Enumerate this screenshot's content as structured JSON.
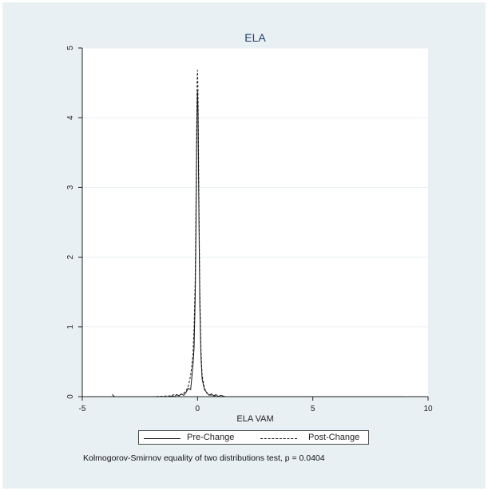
{
  "chart_data": {
    "type": "line",
    "title": "ELA",
    "xlabel": "ELA VAM",
    "ylabel": "",
    "xlim": [
      -5,
      10
    ],
    "ylim": [
      0,
      5
    ],
    "xticks": [
      -5,
      0,
      5,
      10
    ],
    "yticks": [
      0,
      1,
      2,
      3,
      4,
      5
    ],
    "grid": "horizontal",
    "legend_position": "bottom",
    "series": [
      {
        "name": "Pre-Change",
        "style": "solid",
        "x": [
          -3.7,
          -3.6,
          -3.4,
          -2.0,
          -1.2,
          -1.1,
          -1.0,
          -0.9,
          -0.8,
          -0.7,
          -0.6,
          -0.5,
          -0.4,
          -0.3,
          -0.2,
          -0.15,
          -0.1,
          -0.07,
          -0.04,
          -0.02,
          0.0,
          0.02,
          0.04,
          0.07,
          0.1,
          0.15,
          0.2,
          0.3,
          0.4,
          0.5,
          0.6,
          0.7,
          0.8,
          0.9,
          1.0,
          1.2,
          2.0,
          5.0,
          9.0
        ],
        "y": [
          0.03,
          0.0,
          0.0,
          0.0,
          0.0,
          0.01,
          0.0,
          0.03,
          0.01,
          0.04,
          0.02,
          0.06,
          0.12,
          0.1,
          0.45,
          0.7,
          1.4,
          2.3,
          3.5,
          4.1,
          4.38,
          4.1,
          3.3,
          2.2,
          1.3,
          0.55,
          0.25,
          0.1,
          0.06,
          0.02,
          0.04,
          0.01,
          0.03,
          0.0,
          0.02,
          0.0,
          0.0,
          0.0,
          0.0
        ]
      },
      {
        "name": "Post-Change",
        "style": "dashed",
        "x": [
          -3.7,
          -3.0,
          -2.0,
          -1.2,
          -1.0,
          -0.8,
          -0.6,
          -0.5,
          -0.4,
          -0.3,
          -0.2,
          -0.15,
          -0.1,
          -0.07,
          -0.04,
          -0.02,
          0.0,
          0.02,
          0.04,
          0.07,
          0.1,
          0.15,
          0.2,
          0.3,
          0.4,
          0.5,
          0.6,
          0.8,
          1.0,
          1.2,
          2.0,
          5.0,
          9.0
        ],
        "y": [
          0.0,
          0.0,
          0.0,
          0.01,
          0.03,
          0.02,
          0.05,
          0.08,
          0.15,
          0.3,
          0.6,
          1.0,
          1.7,
          2.7,
          3.8,
          4.5,
          4.68,
          4.4,
          3.6,
          2.4,
          1.5,
          0.65,
          0.3,
          0.12,
          0.05,
          0.03,
          0.02,
          0.01,
          0.0,
          0.0,
          0.0,
          0.0,
          0.0
        ]
      }
    ],
    "note": "Kolmogorov-Smirnov equality of two distributions test, p = 0.0404"
  },
  "legend": {
    "pre_label": "Pre-Change",
    "post_label": "Post-Change"
  },
  "colors": {
    "background": "#e9f0f3",
    "plot_background": "#ffffff",
    "title": "#1e3f66",
    "line": "#1a1a1a",
    "grid": "#eaf1f3"
  }
}
